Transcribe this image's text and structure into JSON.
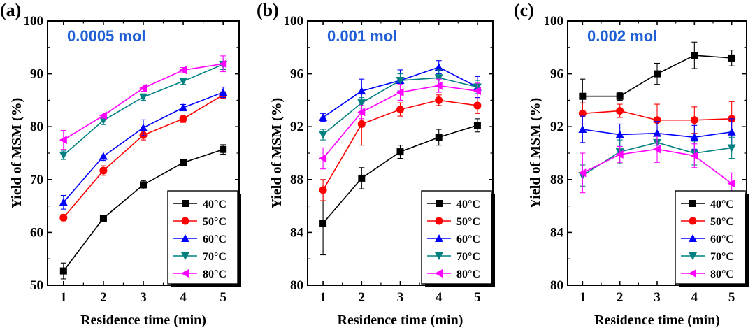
{
  "chart_data": [
    {
      "type": "line",
      "panel": "(a)",
      "annotation": "0.0005 mol",
      "xlabel": "Residence time (min)",
      "ylabel": "Yield of MSM (%)",
      "x": [
        1,
        2,
        3,
        4,
        5
      ],
      "x_ticks": [
        "1",
        "2",
        "3",
        "4",
        "5"
      ],
      "ylim": [
        50,
        100
      ],
      "y_ticks": [
        "50",
        "60",
        "70",
        "80",
        "90",
        "100"
      ],
      "y_tick_values": [
        50,
        60,
        70,
        80,
        90,
        100
      ],
      "legend_position": "bottom-right",
      "series": [
        {
          "name": "40°C",
          "values": [
            52.7,
            62.7,
            69.0,
            73.2,
            75.7
          ],
          "errors": [
            1.5,
            0.5,
            0.8,
            0.5,
            0.9
          ]
        },
        {
          "name": "50°C",
          "values": [
            62.8,
            71.7,
            78.4,
            81.5,
            86.0
          ],
          "errors": [
            0.6,
            0.9,
            0.9,
            0.7,
            0.6
          ]
        },
        {
          "name": "60°C",
          "values": [
            65.7,
            74.4,
            79.8,
            83.6,
            86.5
          ],
          "errors": [
            1.3,
            0.8,
            1.5,
            0.6,
            1.0
          ]
        },
        {
          "name": "70°C",
          "values": [
            74.6,
            81.2,
            85.6,
            88.6,
            91.8
          ],
          "errors": [
            0.8,
            0.8,
            0.6,
            0.6,
            1.0
          ]
        },
        {
          "name": "80°C",
          "values": [
            77.5,
            82.1,
            87.3,
            90.7,
            91.9
          ],
          "errors": [
            1.8,
            0.5,
            0.6,
            0.5,
            1.5
          ]
        }
      ]
    },
    {
      "type": "line",
      "panel": "(b)",
      "annotation": "0.001 mol",
      "xlabel": "Residence time (min)",
      "ylabel": "Yield of MSM (%)",
      "x": [
        1,
        2,
        3,
        4,
        5
      ],
      "x_ticks": [
        "1",
        "2",
        "3",
        "4",
        "5"
      ],
      "ylim": [
        80,
        100
      ],
      "y_ticks": [
        "80",
        "84",
        "88",
        "92",
        "96",
        "100"
      ],
      "y_tick_values": [
        80,
        84,
        88,
        92,
        96,
        100
      ],
      "legend_position": "bottom-right",
      "series": [
        {
          "name": "40°C",
          "values": [
            84.7,
            88.1,
            90.1,
            91.2,
            92.1
          ],
          "errors": [
            2.4,
            0.8,
            0.5,
            0.6,
            0.5
          ]
        },
        {
          "name": "50°C",
          "values": [
            87.2,
            92.2,
            93.3,
            94.0,
            93.6
          ],
          "errors": [
            0.8,
            1.6,
            0.5,
            0.4,
            0.6
          ]
        },
        {
          "name": "60°C",
          "values": [
            92.7,
            94.7,
            95.5,
            96.5,
            95.0
          ],
          "errors": [
            0.3,
            0.9,
            0.8,
            0.5,
            0.8
          ]
        },
        {
          "name": "70°C",
          "values": [
            91.4,
            93.8,
            95.5,
            95.7,
            95.0
          ],
          "errors": [
            0.4,
            0.4,
            0.5,
            0.6,
            0.5
          ]
        },
        {
          "name": "80°C",
          "values": [
            89.6,
            93.1,
            94.6,
            95.1,
            94.7
          ],
          "errors": [
            0.8,
            0.5,
            0.6,
            0.5,
            0.6
          ]
        }
      ]
    },
    {
      "type": "line",
      "panel": "(c)",
      "annotation": "0.002 mol",
      "xlabel": "Residence time (min)",
      "ylabel": "Yield of MSM (%)",
      "x": [
        1,
        2,
        3,
        4,
        5
      ],
      "x_ticks": [
        "1",
        "2",
        "3",
        "4",
        "5"
      ],
      "ylim": [
        80,
        100
      ],
      "y_ticks": [
        "80",
        "84",
        "88",
        "92",
        "96",
        "100"
      ],
      "y_tick_values": [
        80,
        84,
        88,
        92,
        96,
        100
      ],
      "legend_position": "bottom-right",
      "series": [
        {
          "name": "40°C",
          "values": [
            94.3,
            94.3,
            96.0,
            97.4,
            97.2
          ],
          "errors": [
            1.3,
            0.3,
            0.8,
            1.0,
            0.6
          ]
        },
        {
          "name": "50°C",
          "values": [
            93.0,
            93.2,
            92.5,
            92.5,
            92.6
          ],
          "errors": [
            0.8,
            0.5,
            1.2,
            1.0,
            1.3
          ]
        },
        {
          "name": "60°C",
          "values": [
            91.8,
            91.4,
            91.5,
            91.2,
            91.6
          ],
          "errors": [
            1.0,
            0.8,
            0.9,
            0.9,
            1.0
          ]
        },
        {
          "name": "70°C",
          "values": [
            88.3,
            90.1,
            90.8,
            90.0,
            90.4
          ],
          "errors": [
            0.8,
            0.9,
            0.5,
            0.9,
            0.8
          ]
        },
        {
          "name": "80°C",
          "values": [
            88.5,
            89.9,
            90.3,
            89.8,
            87.7
          ],
          "errors": [
            1.5,
            0.6,
            1.0,
            0.9,
            0.8
          ]
        }
      ]
    }
  ],
  "series_style": [
    {
      "color": "#000000",
      "marker": "square"
    },
    {
      "color": "#ff0000",
      "marker": "circle"
    },
    {
      "color": "#0000ff",
      "marker": "triangle-up"
    },
    {
      "color": "#008080",
      "marker": "triangle-down"
    },
    {
      "color": "#ff00ff",
      "marker": "triangle-left"
    }
  ],
  "annotation_color": "#1f5fd6"
}
